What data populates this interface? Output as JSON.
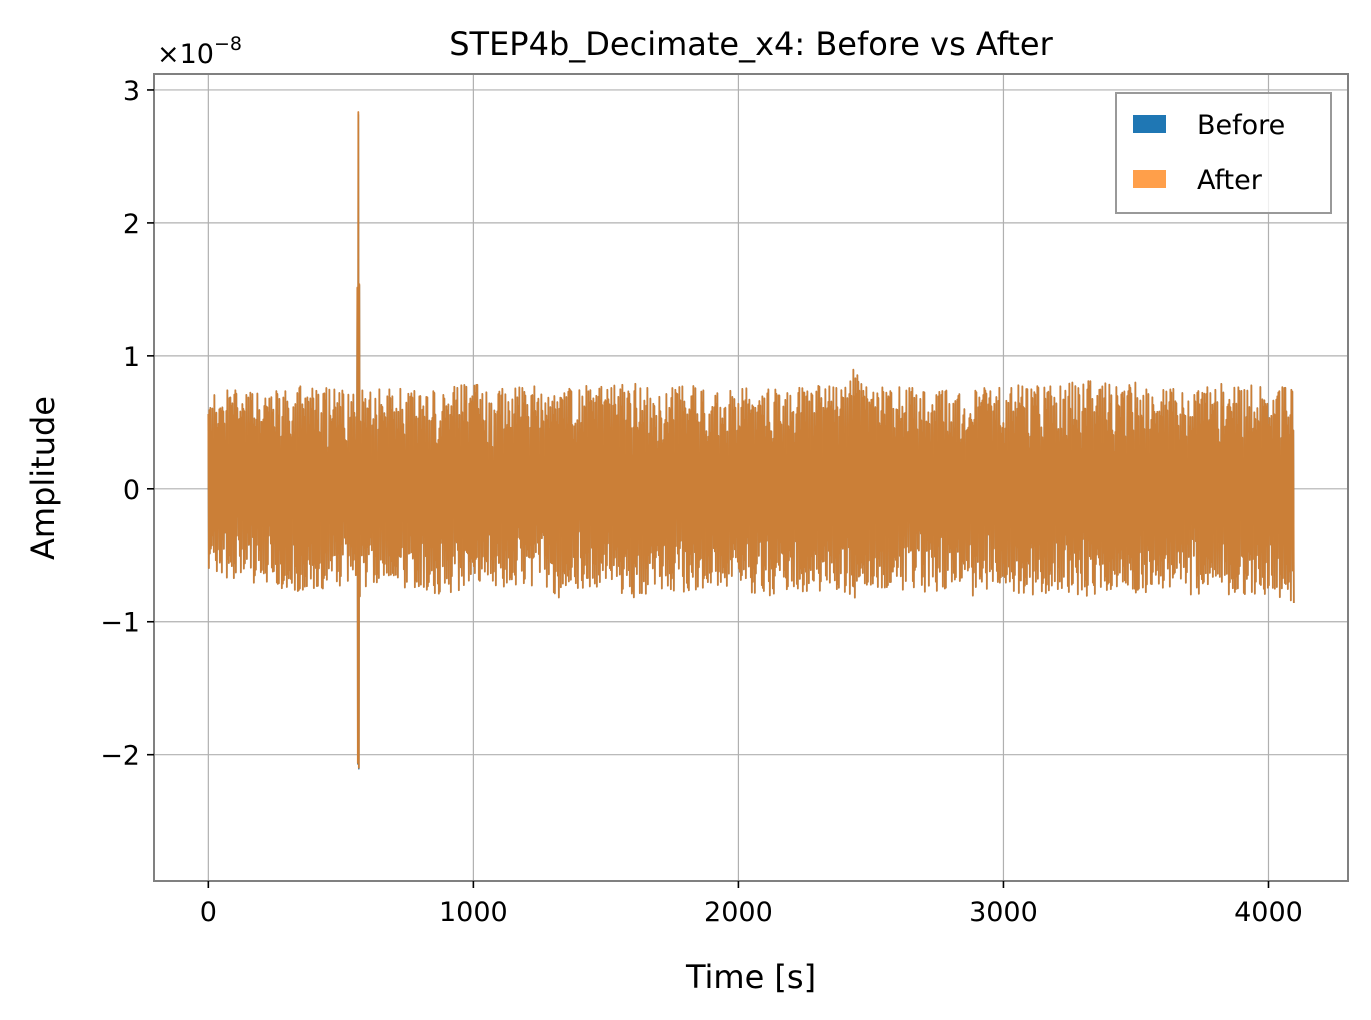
{
  "chart_data": {
    "type": "line",
    "title": "STEP4b_Decimate_x4: Before vs After",
    "xlabel": "Time [s]",
    "ylabel": "Amplitude",
    "y_multiplier": "×10",
    "y_multiplier_exponent": "−8",
    "xlim": [
      -205,
      4300
    ],
    "ylim": [
      -2.95,
      3.12
    ],
    "xticks": [
      0,
      1000,
      2000,
      3000,
      4000
    ],
    "xtick_labels": [
      "0",
      "1000",
      "2000",
      "3000",
      "4000"
    ],
    "yticks": [
      -2,
      -1,
      0,
      1,
      2,
      3
    ],
    "ytick_labels": [
      "−2",
      "−1",
      "0",
      "1",
      "2",
      "3"
    ],
    "grid": true,
    "legend_position": "top-right",
    "series": [
      {
        "name": "Before",
        "color": "#1f77b4",
        "x_range": [
          0,
          4096
        ],
        "envelope": {
          "x": [
            0,
            100,
            200,
            300,
            400,
            500,
            560,
            566,
            572,
            700,
            800,
            900,
            1000,
            1100,
            1200,
            1300,
            1340,
            1400,
            1500,
            1600,
            1700,
            1800,
            1900,
            2000,
            2100,
            2200,
            2300,
            2400,
            2440,
            2500,
            2600,
            2700,
            2800,
            2900,
            3000,
            3100,
            3200,
            3300,
            3400,
            3500,
            3600,
            3700,
            3800,
            3900,
            4000,
            4096
          ],
          "upper": [
            0.72,
            0.75,
            0.72,
            0.78,
            0.8,
            0.74,
            0.75,
            2.83,
            0.74,
            0.76,
            0.73,
            0.78,
            0.8,
            0.75,
            0.79,
            0.74,
            0.76,
            0.78,
            0.77,
            0.8,
            0.74,
            0.78,
            0.76,
            0.76,
            0.78,
            0.75,
            0.79,
            0.75,
            0.95,
            0.77,
            0.78,
            0.76,
            0.75,
            0.77,
            0.78,
            0.79,
            0.77,
            0.82,
            0.79,
            0.8,
            0.76,
            0.75,
            0.81,
            0.77,
            0.8,
            0.74
          ],
          "lower": [
            -0.62,
            -0.7,
            -0.72,
            -0.76,
            -0.8,
            -0.74,
            -0.72,
            -2.71,
            -0.74,
            -0.72,
            -0.78,
            -0.8,
            -0.74,
            -0.76,
            -0.72,
            -0.78,
            -0.87,
            -0.76,
            -0.74,
            -0.85,
            -0.75,
            -0.78,
            -0.73,
            -0.76,
            -0.82,
            -0.77,
            -0.78,
            -0.8,
            -0.82,
            -0.76,
            -0.76,
            -0.78,
            -0.77,
            -0.85,
            -0.8,
            -0.8,
            -0.78,
            -0.8,
            -0.85,
            -0.82,
            -0.78,
            -0.8,
            -0.79,
            -0.8,
            -0.8,
            -0.88
          ]
        }
      },
      {
        "name": "After",
        "color": "#ff7f0e",
        "x_range": [
          0,
          4096
        ],
        "envelope": {
          "x": [
            0,
            100,
            200,
            300,
            400,
            500,
            560,
            566,
            572,
            700,
            800,
            900,
            1000,
            1100,
            1200,
            1300,
            1340,
            1400,
            1500,
            1600,
            1700,
            1800,
            1900,
            2000,
            2100,
            2200,
            2300,
            2400,
            2440,
            2500,
            2600,
            2700,
            2800,
            2900,
            3000,
            3100,
            3200,
            3300,
            3400,
            3500,
            3600,
            3700,
            3800,
            3900,
            4000,
            4096
          ],
          "upper": [
            0.72,
            0.75,
            0.72,
            0.78,
            0.8,
            0.74,
            0.75,
            2.85,
            0.74,
            0.76,
            0.73,
            0.78,
            0.8,
            0.75,
            0.79,
            0.74,
            0.76,
            0.78,
            0.77,
            0.8,
            0.74,
            0.78,
            0.76,
            0.76,
            0.78,
            0.75,
            0.79,
            0.75,
            0.95,
            0.77,
            0.78,
            0.76,
            0.75,
            0.77,
            0.78,
            0.79,
            0.77,
            0.82,
            0.79,
            0.8,
            0.76,
            0.75,
            0.81,
            0.77,
            0.8,
            0.74
          ],
          "lower": [
            -0.62,
            -0.7,
            -0.72,
            -0.76,
            -0.8,
            -0.74,
            -0.72,
            -2.7,
            -0.74,
            -0.72,
            -0.78,
            -0.8,
            -0.74,
            -0.76,
            -0.72,
            -0.78,
            -0.87,
            -0.76,
            -0.74,
            -0.85,
            -0.75,
            -0.78,
            -0.73,
            -0.76,
            -0.82,
            -0.77,
            -0.78,
            -0.8,
            -0.82,
            -0.76,
            -0.76,
            -0.78,
            -0.77,
            -0.85,
            -0.8,
            -0.8,
            -0.78,
            -0.8,
            -0.85,
            -0.82,
            -0.78,
            -0.8,
            -0.79,
            -0.8,
            -0.8,
            -0.88
          ]
        }
      }
    ]
  }
}
